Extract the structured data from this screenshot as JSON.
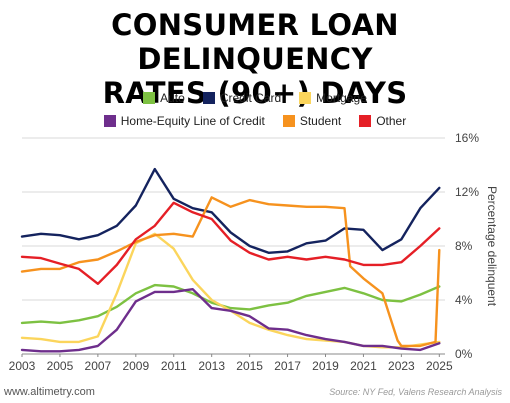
{
  "chart_data": {
    "type": "line",
    "title": "CONSUMER LOAN DELINQUENCY RATES (90+) DAYS",
    "ylabel": "Percentage delinquent",
    "xlim": [
      2003,
      2025.3
    ],
    "ylim": [
      0,
      16
    ],
    "y_axis_side": "right",
    "grid": "horizontal",
    "legend_placement": "top",
    "x_ticks": [
      "2003",
      "2005",
      "2007",
      "2009",
      "2011",
      "2013",
      "2015",
      "2017",
      "2019",
      "2021",
      "2023",
      "2025"
    ],
    "y_ticks": [
      "0%",
      "4%",
      "8%",
      "12%",
      "16%"
    ],
    "source": "Source: NY Fed, Valens Research Analysis",
    "watermark": "www.altimetry.com",
    "series": [
      {
        "name": "Auto",
        "color": "#7dc142",
        "points": [
          [
            2003,
            2.3
          ],
          [
            2004,
            2.4
          ],
          [
            2005,
            2.3
          ],
          [
            2006,
            2.5
          ],
          [
            2007,
            2.8
          ],
          [
            2008,
            3.5
          ],
          [
            2009,
            4.5
          ],
          [
            2010,
            5.1
          ],
          [
            2011,
            5.0
          ],
          [
            2012,
            4.5
          ],
          [
            2013,
            3.8
          ],
          [
            2014,
            3.4
          ],
          [
            2015,
            3.3
          ],
          [
            2016,
            3.6
          ],
          [
            2017,
            3.8
          ],
          [
            2018,
            4.3
          ],
          [
            2019,
            4.6
          ],
          [
            2020,
            4.9
          ],
          [
            2021,
            4.5
          ],
          [
            2022,
            4.0
          ],
          [
            2023,
            3.9
          ],
          [
            2024,
            4.4
          ],
          [
            2025,
            5.0
          ]
        ]
      },
      {
        "name": "Credit Card",
        "color": "#14235e",
        "points": [
          [
            2003,
            8.7
          ],
          [
            2004,
            8.9
          ],
          [
            2005,
            8.8
          ],
          [
            2006,
            8.5
          ],
          [
            2007,
            8.8
          ],
          [
            2008,
            9.5
          ],
          [
            2009,
            11.0
          ],
          [
            2010,
            13.7
          ],
          [
            2011,
            11.5
          ],
          [
            2012,
            10.8
          ],
          [
            2013,
            10.5
          ],
          [
            2014,
            9.0
          ],
          [
            2015,
            8.0
          ],
          [
            2016,
            7.5
          ],
          [
            2017,
            7.6
          ],
          [
            2018,
            8.2
          ],
          [
            2019,
            8.4
          ],
          [
            2020,
            9.3
          ],
          [
            2021,
            9.2
          ],
          [
            2022,
            7.7
          ],
          [
            2023,
            8.5
          ],
          [
            2024,
            10.8
          ],
          [
            2025,
            12.3
          ]
        ]
      },
      {
        "name": "Mortgage",
        "color": "#fbd55c",
        "points": [
          [
            2003,
            1.2
          ],
          [
            2004,
            1.1
          ],
          [
            2005,
            0.9
          ],
          [
            2006,
            0.9
          ],
          [
            2007,
            1.3
          ],
          [
            2008,
            4.5
          ],
          [
            2009,
            8.2
          ],
          [
            2010,
            8.9
          ],
          [
            2011,
            7.8
          ],
          [
            2012,
            5.5
          ],
          [
            2013,
            4.0
          ],
          [
            2014,
            3.2
          ],
          [
            2015,
            2.3
          ],
          [
            2016,
            1.8
          ],
          [
            2017,
            1.4
          ],
          [
            2018,
            1.1
          ],
          [
            2019,
            1.0
          ],
          [
            2020,
            0.9
          ],
          [
            2021,
            0.6
          ],
          [
            2022,
            0.5
          ],
          [
            2023,
            0.5
          ],
          [
            2024,
            0.7
          ],
          [
            2025,
            0.9
          ]
        ]
      },
      {
        "name": "Home-Equity Line of Credit",
        "color": "#6e2e8c",
        "points": [
          [
            2003,
            0.3
          ],
          [
            2004,
            0.2
          ],
          [
            2005,
            0.2
          ],
          [
            2006,
            0.3
          ],
          [
            2007,
            0.6
          ],
          [
            2008,
            1.8
          ],
          [
            2009,
            3.9
          ],
          [
            2010,
            4.6
          ],
          [
            2011,
            4.6
          ],
          [
            2012,
            4.8
          ],
          [
            2013,
            3.4
          ],
          [
            2014,
            3.2
          ],
          [
            2015,
            2.8
          ],
          [
            2016,
            1.9
          ],
          [
            2017,
            1.8
          ],
          [
            2018,
            1.4
          ],
          [
            2019,
            1.1
          ],
          [
            2020,
            0.9
          ],
          [
            2021,
            0.6
          ],
          [
            2022,
            0.6
          ],
          [
            2023,
            0.4
          ],
          [
            2024,
            0.3
          ],
          [
            2025,
            0.8
          ]
        ]
      },
      {
        "name": "Student",
        "color": "#f6921e",
        "points": [
          [
            2003,
            6.1
          ],
          [
            2004,
            6.3
          ],
          [
            2005,
            6.3
          ],
          [
            2006,
            6.8
          ],
          [
            2007,
            7.0
          ],
          [
            2008,
            7.6
          ],
          [
            2009,
            8.3
          ],
          [
            2010,
            8.8
          ],
          [
            2011,
            8.9
          ],
          [
            2012,
            8.7
          ],
          [
            2013,
            11.6
          ],
          [
            2014,
            10.9
          ],
          [
            2015,
            11.4
          ],
          [
            2016,
            11.1
          ],
          [
            2017,
            11.0
          ],
          [
            2018,
            10.9
          ],
          [
            2019,
            10.9
          ],
          [
            2020,
            10.8
          ],
          [
            2020.3,
            6.5
          ],
          [
            2021,
            5.6
          ],
          [
            2022,
            4.5
          ],
          [
            2022.8,
            1.0
          ],
          [
            2023,
            0.6
          ],
          [
            2024,
            0.6
          ],
          [
            2024.8,
            0.9
          ],
          [
            2025,
            7.7
          ]
        ]
      },
      {
        "name": "Other",
        "color": "#e51f26",
        "points": [
          [
            2003,
            7.2
          ],
          [
            2004,
            7.1
          ],
          [
            2005,
            6.7
          ],
          [
            2006,
            6.3
          ],
          [
            2007,
            5.2
          ],
          [
            2008,
            6.6
          ],
          [
            2009,
            8.5
          ],
          [
            2010,
            9.5
          ],
          [
            2011,
            11.2
          ],
          [
            2012,
            10.5
          ],
          [
            2013,
            10.0
          ],
          [
            2014,
            8.4
          ],
          [
            2015,
            7.5
          ],
          [
            2016,
            7.0
          ],
          [
            2017,
            7.2
          ],
          [
            2018,
            7.0
          ],
          [
            2019,
            7.2
          ],
          [
            2020,
            7.0
          ],
          [
            2021,
            6.6
          ],
          [
            2022,
            6.6
          ],
          [
            2023,
            6.8
          ],
          [
            2024,
            8.0
          ],
          [
            2025,
            9.3
          ]
        ]
      }
    ]
  }
}
